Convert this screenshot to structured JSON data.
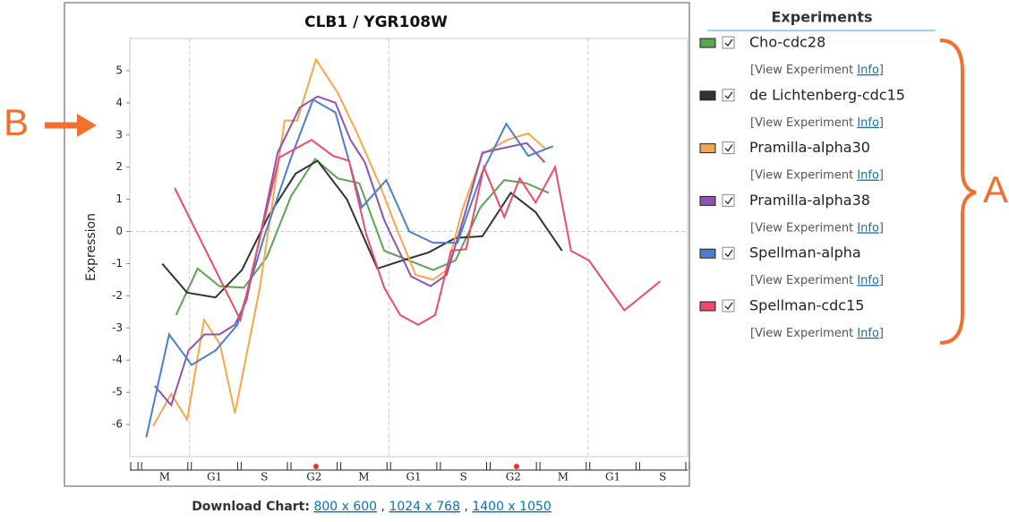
{
  "chart_data": {
    "type": "line",
    "title": "CLB1 / YGR108W",
    "y_label": "Expression",
    "xlim": [
      -0.2,
      11
    ],
    "xticks": [
      0,
      1,
      2,
      3,
      4,
      5,
      6,
      7,
      8,
      9,
      10,
      11
    ],
    "phases": [
      "M",
      "G1",
      "S",
      "G2",
      "M",
      "G1",
      "S",
      "G2",
      "M",
      "G1",
      "S"
    ],
    "ylim": [
      -7,
      6
    ],
    "yticks": [
      -6,
      -5,
      -4,
      -3,
      -2,
      -1,
      0,
      1,
      2,
      3,
      4,
      5
    ],
    "zero_line": true,
    "legend_title": "Experiments",
    "view_prefix": "[View Experiment",
    "view_link": "Info",
    "view_suffix": "]",
    "series": [
      {
        "name": "Cho-cdc28",
        "color": "#5aa452",
        "x": [
          0.73,
          1.16,
          1.6,
          2.09,
          2.55,
          3.04,
          3.52,
          3.98,
          4.41,
          4.91,
          5.41,
          5.89,
          6.34,
          6.84,
          7.32,
          7.77,
          8.21
        ],
        "values": [
          -2.6,
          -1.15,
          -1.7,
          -1.75,
          -0.8,
          1.1,
          2.25,
          1.65,
          1.5,
          -0.6,
          -0.9,
          -1.2,
          -0.9,
          0.75,
          1.6,
          1.5,
          1.2
        ]
      },
      {
        "name": "de Lichtenberg-cdc15",
        "color": "#333333",
        "x": [
          0.45,
          0.95,
          1.52,
          2.05,
          2.59,
          3.13,
          3.57,
          4.16,
          4.77,
          5.27,
          5.8,
          6.34,
          6.88,
          7.45,
          7.95,
          8.48
        ],
        "values": [
          -1.0,
          -1.9,
          -2.05,
          -1.2,
          0.5,
          1.8,
          2.2,
          1.0,
          -1.15,
          -0.9,
          -0.65,
          -0.2,
          -0.15,
          1.2,
          0.6,
          -0.6
        ]
      },
      {
        "name": "Pramilla-alpha30",
        "color": "#f7a64a",
        "x": [
          0.27,
          0.63,
          0.95,
          1.29,
          1.61,
          1.91,
          2.41,
          2.91,
          3.16,
          3.54,
          3.98,
          4.38,
          4.82,
          5.18,
          5.54,
          5.89,
          6.16,
          6.48,
          6.88,
          7.38,
          7.8,
          8.16
        ],
        "values": [
          -6.05,
          -5.05,
          -5.85,
          -2.75,
          -3.5,
          -5.65,
          -1.75,
          3.45,
          3.45,
          5.35,
          4.3,
          3.0,
          1.45,
          0,
          -1.35,
          -1.5,
          -1.2,
          0.7,
          2.4,
          2.85,
          3.05,
          2.55
        ]
      },
      {
        "name": "Pramilla-alpha38",
        "color": "#8e52b0",
        "x": [
          0.3,
          0.63,
          0.98,
          1.3,
          1.6,
          1.91,
          2.14,
          2.77,
          3.21,
          3.57,
          3.93,
          4.23,
          4.52,
          4.91,
          5.45,
          5.84,
          6.16,
          6.52,
          6.88,
          7.32,
          7.77,
          8.13
        ],
        "values": [
          -4.8,
          -5.4,
          -3.7,
          -3.2,
          -3.2,
          -2.9,
          -2.15,
          2.45,
          3.85,
          4.2,
          4.0,
          2.85,
          2.15,
          0.35,
          -1.4,
          -1.7,
          -1.35,
          0.5,
          2.45,
          2.6,
          2.75,
          2.15
        ]
      },
      {
        "name": "Spellman-alpha",
        "color": "#4a7fcb",
        "x": [
          0.13,
          0.59,
          1.04,
          1.52,
          1.96,
          2.5,
          3.04,
          3.48,
          3.93,
          4.46,
          4.95,
          5.41,
          5.89,
          6.38,
          6.88,
          7.36,
          7.8,
          8.3
        ],
        "values": [
          -6.4,
          -3.2,
          -4.15,
          -3.7,
          -2.9,
          -0.15,
          2.3,
          4.1,
          3.7,
          0.75,
          1.6,
          0,
          -0.35,
          -0.35,
          1.85,
          3.35,
          2.35,
          2.65
        ]
      },
      {
        "name": "Spellman-cdc15",
        "color": "#ec4a6a",
        "x": [
          0.7,
          2.02,
          2.8,
          3.45,
          3.88,
          4.2,
          4.55,
          4.91,
          5.23,
          5.59,
          5.93,
          6.25,
          6.55,
          6.91,
          7.32,
          7.63,
          7.95,
          8.34,
          8.66,
          9.02,
          9.73,
          10.45
        ],
        "values": [
          1.35,
          -2.75,
          2.3,
          2.85,
          2.35,
          2.2,
          -0.1,
          -1.75,
          -2.6,
          -2.9,
          -2.6,
          -0.6,
          -0.55,
          2.0,
          0.45,
          1.65,
          0.9,
          2.0,
          -0.6,
          -0.9,
          -2.45,
          -1.55
        ]
      }
    ],
    "annotations": [
      "A",
      "B"
    ],
    "download_label": "Download Chart:",
    "download_links": [
      "800 x 600",
      "1024 x 768",
      "1400 x 1050"
    ],
    "separator": ","
  }
}
